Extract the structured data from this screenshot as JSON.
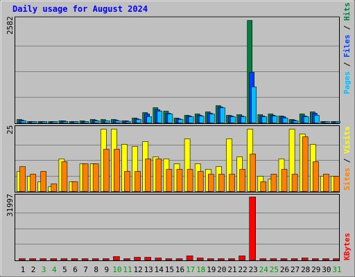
{
  "title": "Daily usage for August 2024",
  "legend_top": [
    {
      "label": "Hits",
      "color": "#008040"
    },
    {
      "label": "Files",
      "color": "#0040ff"
    },
    {
      "label": "Pages",
      "color": "#00c0ff"
    }
  ],
  "legend_mid": [
    {
      "label": "Visits",
      "color": "#ffff00"
    },
    {
      "label": "Sites",
      "color": "#ff8000"
    }
  ],
  "legend_bot": [
    {
      "label": "KBytes",
      "color": "#ff0000"
    }
  ],
  "colors": {
    "background": "#c0c0c0",
    "title": "#0000ff",
    "weekend_day": "#00a000",
    "weekday": "#000000"
  },
  "chart_data": [
    {
      "type": "bar",
      "ylabel": "2582",
      "ylim": [
        0,
        2582
      ],
      "categories": [
        "1",
        "2",
        "3",
        "4",
        "5",
        "6",
        "7",
        "8",
        "9",
        "10",
        "11",
        "12",
        "13",
        "14",
        "15",
        "16",
        "17",
        "18",
        "19",
        "20",
        "21",
        "22",
        "23",
        "24",
        "25",
        "26",
        "27",
        "28",
        "29",
        "30",
        "31"
      ],
      "weekend": [
        3,
        4,
        10,
        11,
        17,
        18,
        24,
        25,
        31
      ],
      "series": [
        {
          "name": "Hits",
          "values": [
            80,
            40,
            40,
            40,
            60,
            40,
            50,
            80,
            80,
            80,
            60,
            120,
            270,
            380,
            300,
            130,
            200,
            220,
            280,
            440,
            200,
            210,
            2582,
            210,
            220,
            180,
            80,
            220,
            280,
            40,
            40
          ]
        },
        {
          "name": "Files",
          "values": [
            70,
            30,
            30,
            30,
            50,
            30,
            40,
            70,
            60,
            70,
            50,
            100,
            230,
            340,
            250,
            110,
            170,
            190,
            240,
            400,
            170,
            180,
            1280,
            180,
            190,
            150,
            70,
            180,
            240,
            30,
            30
          ]
        },
        {
          "name": "Pages",
          "values": [
            60,
            20,
            20,
            20,
            40,
            20,
            30,
            60,
            50,
            60,
            40,
            80,
            160,
            300,
            220,
            90,
            150,
            170,
            220,
            380,
            160,
            160,
            900,
            160,
            170,
            130,
            60,
            150,
            200,
            20,
            20
          ]
        }
      ]
    },
    {
      "type": "bar",
      "ylabel": "25",
      "ylim": [
        0,
        25
      ],
      "categories": [
        "1",
        "2",
        "3",
        "4",
        "5",
        "6",
        "7",
        "8",
        "9",
        "10",
        "11",
        "12",
        "13",
        "14",
        "15",
        "16",
        "17",
        "18",
        "19",
        "20",
        "21",
        "22",
        "23",
        "24",
        "25",
        "26",
        "27",
        "28",
        "29",
        "30",
        "31"
      ],
      "series": [
        {
          "name": "Visits",
          "values": [
            8,
            6,
            4,
            2,
            13,
            4,
            11,
            11,
            25,
            25,
            19,
            18,
            20,
            14,
            13,
            11,
            21,
            11,
            9,
            10,
            21,
            14,
            25,
            6,
            5,
            13,
            25,
            23,
            19,
            6,
            6
          ]
        },
        {
          "name": "Sites",
          "values": [
            10,
            7,
            8,
            3,
            12,
            4,
            11,
            11,
            17,
            17,
            8,
            8,
            13,
            13,
            9,
            9,
            9,
            8,
            7,
            7,
            7,
            9,
            15,
            4,
            7,
            9,
            7,
            22,
            12,
            7,
            6
          ]
        }
      ]
    },
    {
      "type": "bar",
      "ylabel": "31997",
      "ylim": [
        0,
        31997
      ],
      "categories": [
        "1",
        "2",
        "3",
        "4",
        "5",
        "6",
        "7",
        "8",
        "9",
        "10",
        "11",
        "12",
        "13",
        "14",
        "15",
        "16",
        "17",
        "18",
        "19",
        "20",
        "21",
        "22",
        "23",
        "24",
        "25",
        "26",
        "27",
        "28",
        "29",
        "30",
        "31"
      ],
      "series": [
        {
          "name": "KBytes",
          "values": [
            200,
            100,
            100,
            100,
            200,
            100,
            100,
            200,
            200,
            1700,
            200,
            1300,
            1300,
            1000,
            700,
            800,
            2000,
            900,
            100,
            500,
            700,
            2200,
            31997,
            100,
            100,
            100,
            500,
            1000,
            600,
            100,
            100
          ]
        }
      ]
    }
  ]
}
